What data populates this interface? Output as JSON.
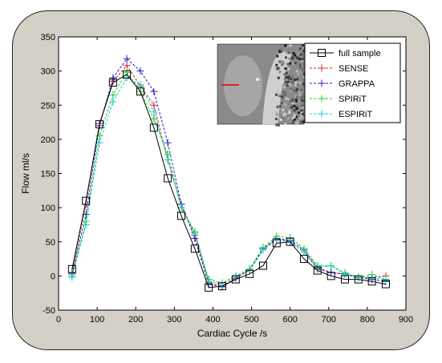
{
  "chart_data": {
    "type": "line",
    "title": "",
    "xlabel": "Cardiac Cycle /s",
    "ylabel": "Flow ml/s",
    "xlim": [
      0,
      900
    ],
    "ylim": [
      -50,
      350
    ],
    "xticks": [
      0,
      100,
      200,
      300,
      400,
      500,
      600,
      700,
      800,
      900
    ],
    "yticks": [
      -50,
      0,
      50,
      100,
      150,
      200,
      250,
      300,
      350
    ],
    "grid": false,
    "legend_position": "top-right",
    "x": [
      35,
      71,
      106,
      141,
      177,
      212,
      247,
      283,
      318,
      353,
      389,
      424,
      459,
      495,
      530,
      565,
      600,
      636,
      671,
      706,
      742,
      777,
      812,
      848
    ],
    "series": [
      {
        "name": "full sample",
        "color": "#000000",
        "marker": "square",
        "line": "solid",
        "values": [
          10,
          110,
          222,
          283,
          295,
          270,
          217,
          143,
          88,
          40,
          -17,
          -15,
          -5,
          3,
          15,
          48,
          50,
          25,
          8,
          0,
          -5,
          -5,
          -8,
          -12
        ]
      },
      {
        "name": "SENSE",
        "color": "#d62728",
        "marker": "plus",
        "line": "dashed",
        "values": [
          5,
          105,
          223,
          285,
          308,
          278,
          250,
          170,
          105,
          60,
          -10,
          -15,
          -3,
          8,
          38,
          55,
          50,
          35,
          10,
          5,
          2,
          -2,
          -2,
          0
        ]
      },
      {
        "name": "GRAPPA",
        "color": "#1f1fd0",
        "marker": "plus",
        "line": "dashed",
        "values": [
          3,
          90,
          220,
          290,
          318,
          300,
          270,
          195,
          105,
          55,
          -12,
          -16,
          -3,
          10,
          40,
          55,
          52,
          38,
          12,
          5,
          3,
          -2,
          -5,
          -8
        ]
      },
      {
        "name": "SPIRiT",
        "color": "#22cc22",
        "marker": "plus",
        "line": "dashed",
        "values": [
          0,
          80,
          205,
          265,
          298,
          270,
          230,
          178,
          100,
          65,
          -5,
          -10,
          0,
          10,
          42,
          58,
          56,
          40,
          15,
          15,
          5,
          -2,
          2,
          -5
        ]
      },
      {
        "name": "ESPIRiT",
        "color": "#11cccc",
        "marker": "plus",
        "line": "dashed",
        "values": [
          -2,
          75,
          195,
          255,
          290,
          280,
          240,
          170,
          100,
          63,
          -8,
          -12,
          0,
          8,
          38,
          53,
          50,
          35,
          12,
          15,
          2,
          -3,
          -2,
          -6
        ]
      }
    ]
  }
}
